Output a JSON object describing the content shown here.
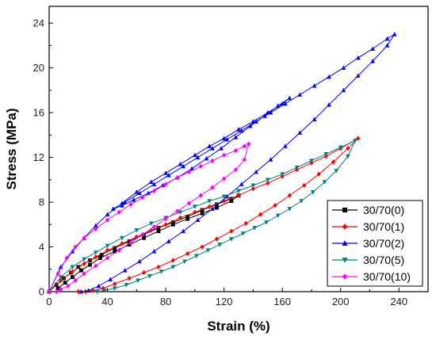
{
  "chart_data": {
    "type": "line",
    "xlabel": "Strain (%)",
    "ylabel": "Stress (MPa)",
    "xlim": [
      0,
      260
    ],
    "ylim": [
      0,
      25.5
    ],
    "xticks": [
      0,
      40,
      80,
      120,
      160,
      200,
      240
    ],
    "yticks": [
      0,
      4,
      8,
      12,
      16,
      20,
      24
    ],
    "grid": false,
    "legend_position": "bottom-right",
    "series": [
      {
        "name": "30/70(0)",
        "color": "#000000",
        "marker": "square",
        "x": [
          0,
          5,
          10,
          15,
          20,
          28,
          36,
          45,
          55,
          65,
          75,
          85,
          95,
          105,
          115,
          125,
          130,
          125,
          115,
          105,
          95,
          85,
          75,
          65,
          55,
          45,
          35,
          28,
          22,
          16,
          11,
          6
        ],
        "y": [
          0,
          0.6,
          1.2,
          1.7,
          2.2,
          2.8,
          3.3,
          3.9,
          4.5,
          5.1,
          5.7,
          6.2,
          6.7,
          7.3,
          7.8,
          8.3,
          8.6,
          8.1,
          7.5,
          7.0,
          6.5,
          6.0,
          5.4,
          4.8,
          4.2,
          3.6,
          3.0,
          2.4,
          1.9,
          1.3,
          0.8,
          0.3
        ]
      },
      {
        "name": "30/70(1)",
        "color": "#ff0000",
        "marker": "diamond",
        "x": [
          0,
          8,
          16,
          24,
          32,
          40,
          50,
          60,
          70,
          80,
          90,
          100,
          110,
          120,
          130,
          140,
          150,
          160,
          170,
          180,
          190,
          200,
          212,
          205,
          195,
          185,
          175,
          165,
          155,
          145,
          135,
          125,
          115,
          105,
          95,
          85,
          75,
          65,
          55,
          45,
          37,
          30,
          25,
          20
        ],
        "y": [
          0,
          1.0,
          1.8,
          2.5,
          3.1,
          3.7,
          4.3,
          4.9,
          5.5,
          6.0,
          6.6,
          7.1,
          7.6,
          8.1,
          8.6,
          9.2,
          9.7,
          10.3,
          10.9,
          11.5,
          12.1,
          12.8,
          13.7,
          12.8,
          11.6,
          10.5,
          9.5,
          8.6,
          7.7,
          6.9,
          6.1,
          5.4,
          4.7,
          4.0,
          3.4,
          2.8,
          2.2,
          1.7,
          1.2,
          0.7,
          0.3,
          0.1,
          0,
          0
        ]
      },
      {
        "name": "30/70(2)",
        "color": "#0000ff",
        "marker": "triangle-up",
        "x": [
          0,
          8,
          16,
          24,
          32,
          40,
          50,
          60,
          70,
          80,
          90,
          100,
          110,
          120,
          130,
          140,
          150,
          160,
          165,
          157,
          148,
          138,
          128,
          118,
          108,
          98,
          88,
          78,
          68,
          58,
          50,
          44,
          52,
          62,
          72,
          82,
          92,
          102,
          112,
          122,
          132,
          142,
          152,
          162,
          172,
          182,
          192,
          202,
          212,
          222,
          232,
          237,
          232,
          222,
          212,
          202,
          192,
          182,
          172,
          162,
          152,
          142,
          132,
          122,
          112,
          102,
          92,
          82,
          72,
          62,
          52,
          42,
          34,
          27,
          22
        ],
        "y": [
          0,
          2.2,
          3.6,
          4.8,
          5.9,
          6.9,
          7.9,
          8.9,
          9.8,
          10.6,
          11.4,
          12.2,
          13.0,
          13.7,
          14.5,
          15.2,
          16.0,
          16.8,
          17.3,
          16.6,
          15.7,
          14.8,
          13.8,
          12.8,
          11.9,
          11.0,
          10.2,
          9.5,
          8.8,
          8.2,
          7.7,
          7.4,
          8.0,
          8.8,
          9.6,
          10.4,
          11.2,
          12.0,
          12.8,
          13.6,
          14.4,
          15.2,
          16.0,
          16.8,
          17.6,
          18.4,
          19.2,
          20.0,
          20.9,
          21.7,
          22.6,
          23.0,
          22.0,
          20.6,
          19.3,
          18.0,
          16.7,
          15.4,
          14.2,
          13.0,
          11.8,
          10.7,
          9.6,
          8.5,
          7.4,
          6.4,
          5.4,
          4.5,
          3.6,
          2.7,
          1.9,
          1.1,
          0.5,
          0.1,
          0
        ]
      },
      {
        "name": "30/70(5)",
        "color": "#008080",
        "marker": "triangle-down",
        "x": [
          0,
          8,
          16,
          24,
          32,
          40,
          50,
          60,
          70,
          80,
          90,
          100,
          110,
          120,
          130,
          140,
          150,
          160,
          170,
          180,
          190,
          200,
          210,
          205,
          197,
          189,
          181,
          173,
          165,
          157,
          149,
          141,
          133,
          125,
          117,
          109,
          101,
          93,
          85,
          77,
          69,
          61,
          53,
          45,
          38,
          33
        ],
        "y": [
          0,
          1.3,
          2.2,
          2.9,
          3.5,
          4.1,
          4.8,
          5.5,
          6.1,
          6.6,
          7.1,
          7.6,
          8.1,
          8.5,
          9.0,
          9.5,
          10.0,
          10.5,
          11.1,
          11.7,
          12.3,
          12.9,
          13.5,
          12.1,
          10.8,
          9.8,
          8.9,
          8.1,
          7.4,
          6.8,
          6.2,
          5.7,
          5.2,
          4.7,
          4.2,
          3.7,
          3.2,
          2.7,
          2.2,
          1.8,
          1.4,
          1.0,
          0.6,
          0.3,
          0.1,
          0
        ]
      },
      {
        "name": "30/70(10)",
        "color": "#ff00ff",
        "marker": "diamond",
        "x": [
          0,
          6,
          12,
          18,
          24,
          32,
          40,
          48,
          56,
          64,
          72,
          80,
          88,
          96,
          104,
          112,
          120,
          128,
          134,
          137,
          134,
          128,
          120,
          112,
          104,
          96,
          88,
          80,
          72,
          64,
          56,
          48,
          40,
          32,
          24,
          18,
          13,
          8,
          5
        ],
        "y": [
          0,
          1.6,
          3.0,
          4.0,
          4.8,
          5.6,
          6.4,
          7.1,
          7.8,
          8.4,
          9.0,
          9.6,
          10.2,
          10.7,
          11.2,
          11.7,
          12.2,
          12.6,
          13.0,
          13.2,
          11.8,
          10.9,
          10.1,
          9.3,
          8.6,
          7.9,
          7.2,
          6.5,
          5.8,
          5.1,
          4.4,
          3.7,
          3.0,
          2.3,
          1.6,
          1.0,
          0.5,
          0.2,
          0
        ]
      }
    ]
  }
}
